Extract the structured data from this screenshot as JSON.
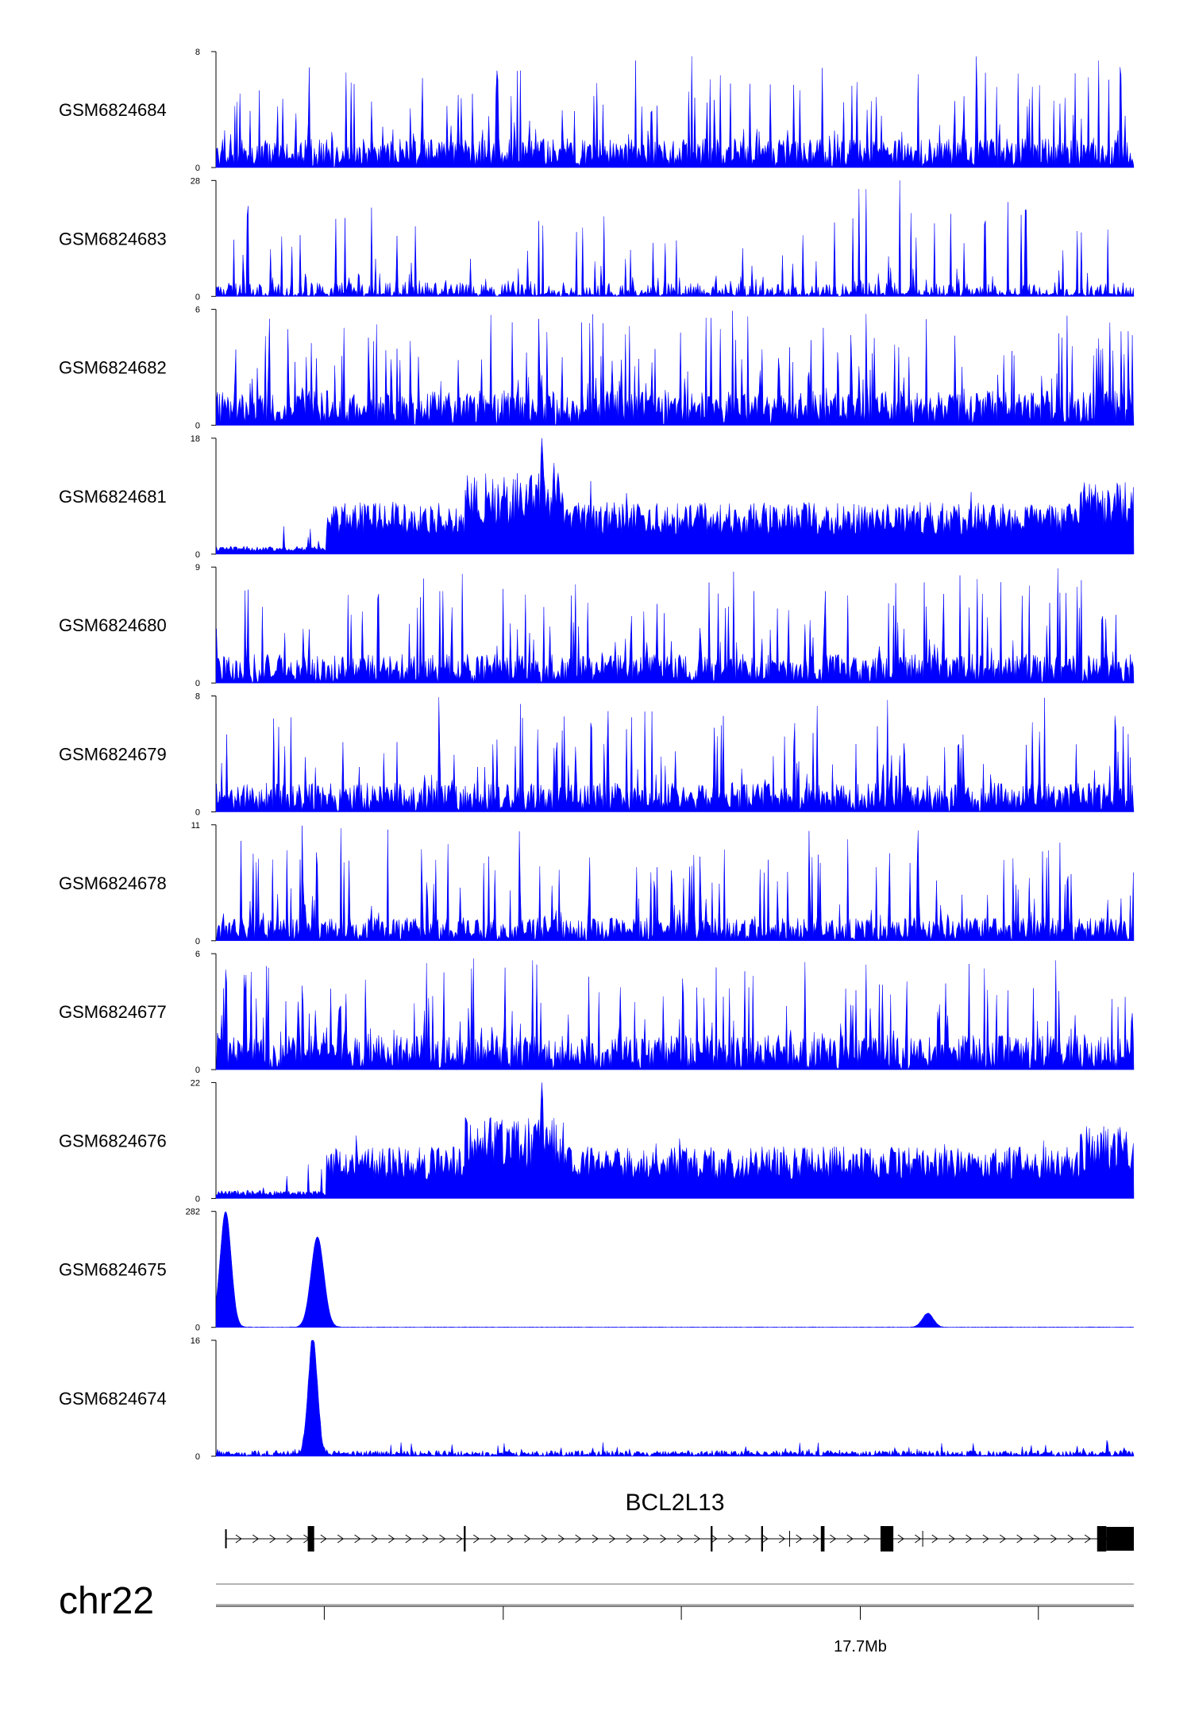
{
  "chart_data": {
    "type": "area",
    "title": "",
    "color": "#0000FF",
    "tracks": [
      {
        "name": "GSM6824684",
        "ymax": 8,
        "ymin": 0,
        "pattern": "spiky",
        "base": 0.25
      },
      {
        "name": "GSM6824683",
        "ymax": 28,
        "ymin": 0,
        "pattern": "sparse",
        "base": 0.12
      },
      {
        "name": "GSM6824682",
        "ymax": 6,
        "ymin": 0,
        "pattern": "spiky",
        "base": 0.3
      },
      {
        "name": "GSM6824681",
        "ymax": 18,
        "ymin": 0,
        "pattern": "broad",
        "base": 0.2
      },
      {
        "name": "GSM6824680",
        "ymax": 9,
        "ymin": 0,
        "pattern": "spiky",
        "base": 0.25
      },
      {
        "name": "GSM6824679",
        "ymax": 8,
        "ymin": 0,
        "pattern": "spiky",
        "base": 0.25
      },
      {
        "name": "GSM6824678",
        "ymax": 11,
        "ymin": 0,
        "pattern": "spiky",
        "base": 0.2
      },
      {
        "name": "GSM6824677",
        "ymax": 6,
        "ymin": 0,
        "pattern": "spiky",
        "base": 0.3
      },
      {
        "name": "GSM6824676",
        "ymax": 22,
        "ymin": 0,
        "pattern": "broad",
        "base": 0.15
      },
      {
        "name": "GSM6824675",
        "ymax": 282,
        "ymin": 0,
        "pattern": "peaks",
        "peaks": [
          [
            0.01,
            1.0,
            0.006
          ],
          [
            0.11,
            0.78,
            0.007
          ],
          [
            0.775,
            0.12,
            0.006
          ]
        ]
      },
      {
        "name": "GSM6824674",
        "ymax": 16,
        "ymin": 0,
        "pattern": "lowpeak",
        "peaks": [
          [
            0.105,
            1.0,
            0.005
          ]
        ]
      }
    ],
    "gene": {
      "name": "BCL2L13",
      "strand": "+",
      "exons": [
        {
          "start": 0.01,
          "end": 0.011,
          "thick": false
        },
        {
          "start": 0.1,
          "end": 0.107,
          "thick": true
        },
        {
          "start": 0.27,
          "end": 0.272,
          "thick": true
        },
        {
          "start": 0.539,
          "end": 0.541,
          "thick": true
        },
        {
          "start": 0.594,
          "end": 0.596,
          "thick": true
        },
        {
          "start": 0.659,
          "end": 0.663,
          "thick": true
        },
        {
          "start": 0.724,
          "end": 0.738,
          "thick": true
        },
        {
          "start": 0.96,
          "end": 0.97,
          "thick": true
        },
        {
          "start": 0.97,
          "end": 1.0,
          "thick": true
        }
      ],
      "tx_start": 0.01,
      "tx_end": 1.0
    },
    "chromosome": "chr22",
    "axis": {
      "ticks": [
        0.118,
        0.313,
        0.507,
        0.702,
        0.896
      ],
      "labeled_tick": {
        "pos": 0.702,
        "label": "17.7Mb"
      }
    }
  }
}
